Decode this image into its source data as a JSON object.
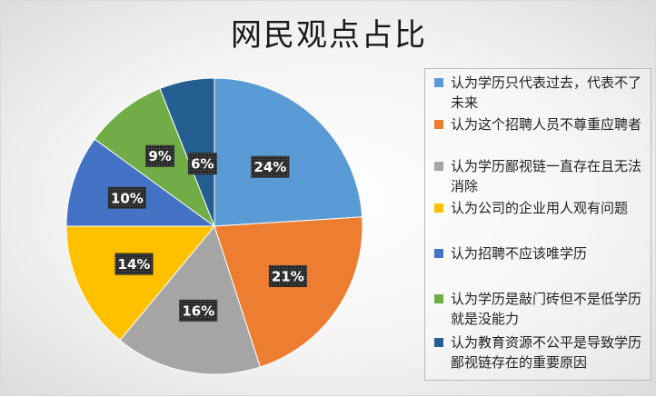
{
  "chart_data": {
    "type": "pie",
    "title": "网民观点占比",
    "categories": [
      "认为学历只代表过去，代表不了未来",
      "认为这个招聘人员不尊重应聘者",
      "认为学历鄙视链一直存在且无法消除",
      "认为公司的企业用人观有问题",
      "认为招聘不应该唯学历",
      "认为学历是敲门砖但不是低学历就是没能力",
      "认为教育资源不公平是导致学历鄙视链存在的重要原因"
    ],
    "values": [
      24,
      21,
      16,
      14,
      10,
      9,
      6
    ],
    "labels": [
      "24%",
      "21%",
      "16%",
      "14%",
      "10%",
      "9%",
      "6%"
    ],
    "colors": [
      "#5B9BD5",
      "#ED7D31",
      "#A5A5A5",
      "#FFC000",
      "#4472C4",
      "#70AD47",
      "#255E91"
    ],
    "legend_position": "right"
  }
}
